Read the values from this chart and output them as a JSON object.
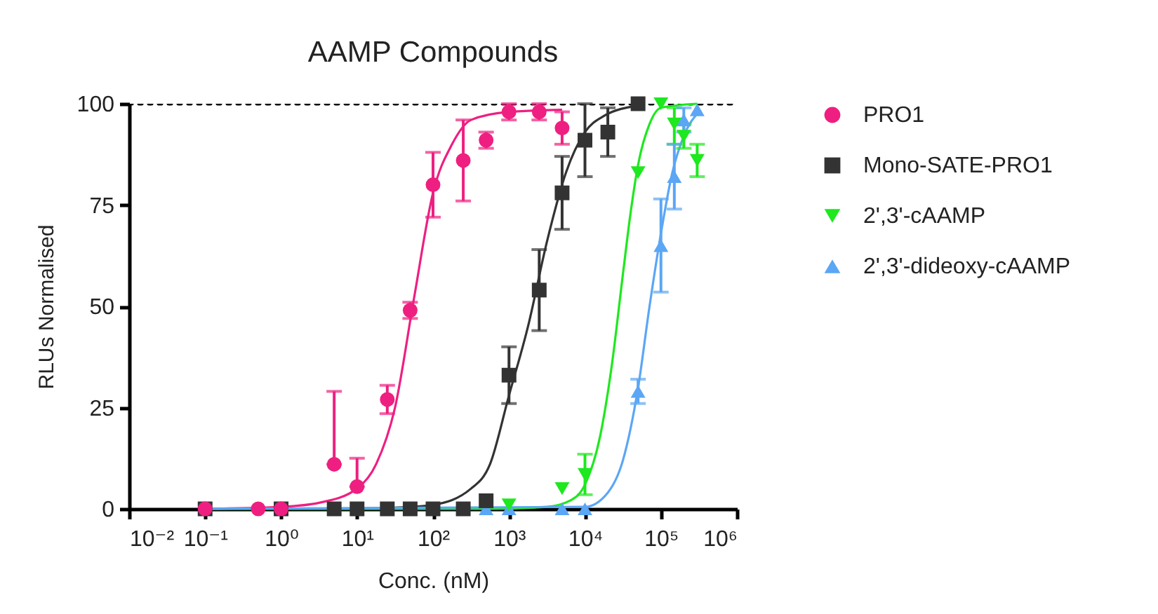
{
  "chart_data": {
    "type": "scatter",
    "title": "AAMP Compounds",
    "xlabel": "Conc. (nM)",
    "ylabel": "RLUs Normalised",
    "log": "x",
    "xlim": [
      0.01,
      1000000
    ],
    "xticks": [
      {
        "value": 0.01,
        "label": "10⁻²"
      },
      {
        "value": 0.1,
        "label": "10⁻¹"
      },
      {
        "value": 1,
        "label": "10⁰"
      },
      {
        "value": 10,
        "label": "10¹"
      },
      {
        "value": 100,
        "label": "10²"
      },
      {
        "value": 1000,
        "label": "10³"
      },
      {
        "value": 10000,
        "label": "10⁴"
      },
      {
        "value": 100000,
        "label": "10⁵"
      },
      {
        "value": 1000000,
        "label": "10⁶"
      }
    ],
    "ylim": [
      0,
      100
    ],
    "yticks": [
      0,
      25,
      50,
      75,
      100
    ],
    "legend": "right",
    "ref_lines": [
      {
        "axis": "y",
        "value": 100,
        "color": "#000000",
        "line_style": "dotted"
      }
    ],
    "series": [
      {
        "type": "line",
        "color": "#ee1f80",
        "x": [
          0.1,
          1,
          3.16,
          10,
          17.8,
          31.6,
          56.2,
          100,
          178,
          316,
          1000,
          5000
        ],
        "values": [
          0,
          0.5,
          1.5,
          5,
          11,
          25,
          52,
          78,
          90,
          96,
          98,
          98.5
        ]
      },
      {
        "type": "line",
        "color": "#333333",
        "x": [
          5,
          31.6,
          100,
          316,
          562,
          1000,
          1778,
          3162,
          5623,
          10000,
          17783,
          50000
        ],
        "values": [
          0,
          0.3,
          1,
          5,
          11,
          28,
          45,
          66,
          83,
          93,
          97,
          99.5
        ]
      },
      {
        "type": "line",
        "color": "#1ee81e",
        "x": [
          0.1,
          500,
          3162,
          6310,
          10000,
          15849,
          22387,
          31623,
          39811,
          50119,
          70795,
          100000,
          300000
        ],
        "values": [
          0,
          0,
          0.5,
          2,
          6,
          18,
          35,
          58,
          73,
          85,
          95,
          99,
          100
        ]
      },
      {
        "type": "line",
        "color": "#5ba6f5",
        "x": [
          0.1,
          10000,
          19953,
          31623,
          50119,
          70795,
          100000,
          141254,
          199526,
          316228
        ],
        "values": [
          0,
          0.5,
          4,
          12,
          30,
          50,
          68,
          83,
          92,
          98
        ]
      },
      {
        "type": "scatter",
        "name": "PRO1",
        "marker": "circle",
        "color": "#ee1f80",
        "x": [
          0.1,
          0.5,
          1,
          5,
          10,
          25,
          50,
          100,
          250,
          500,
          1000,
          2500,
          5000
        ],
        "values": [
          0,
          0,
          0,
          11,
          5.5,
          27,
          49,
          80,
          86,
          91,
          98,
          98,
          94
        ],
        "errors": [
          null,
          null,
          null,
          [
            11,
            29
          ],
          [
            5.5,
            12.5
          ],
          3.5,
          2,
          8,
          10,
          2,
          2,
          2,
          4
        ]
      },
      {
        "type": "scatter",
        "name": "Mono-SATE-PRO1",
        "marker": "square",
        "color": "#333333",
        "x": [
          0.1,
          1,
          5,
          10,
          25,
          50,
          100,
          250,
          500,
          1000,
          2500,
          5000,
          10000,
          20000,
          50000
        ],
        "values": [
          0,
          0,
          0,
          0,
          0,
          0,
          0,
          0,
          2,
          33,
          54,
          78,
          91,
          93,
          100
        ],
        "errors": [
          null,
          null,
          null,
          null,
          null,
          null,
          null,
          null,
          null,
          7,
          10,
          9,
          9,
          6,
          null
        ]
      },
      {
        "type": "scatter",
        "name": "2',3'-cAAMP",
        "marker": "triangle-down",
        "color": "#1ee81e",
        "x": [
          1000,
          5000,
          10000,
          50000,
          100000,
          150000,
          200000,
          300000
        ],
        "values": [
          1,
          5,
          8.5,
          83,
          100,
          95,
          92,
          86
        ],
        "errors": [
          null,
          null,
          5,
          null,
          null,
          [
            90,
            99
          ],
          3,
          4
        ]
      },
      {
        "type": "scatter",
        "name": "2',3'-dideoxy-cAAMP",
        "marker": "triangle-up",
        "color": "#5ba6f5",
        "x": [
          500,
          1000,
          5000,
          10000,
          50000,
          100000,
          150000,
          200000,
          300000
        ],
        "values": [
          0,
          0,
          0,
          0,
          29,
          65,
          82,
          96,
          98.5
        ],
        "errors": [
          null,
          null,
          null,
          null,
          3,
          11.5,
          8,
          3,
          null
        ]
      }
    ]
  }
}
